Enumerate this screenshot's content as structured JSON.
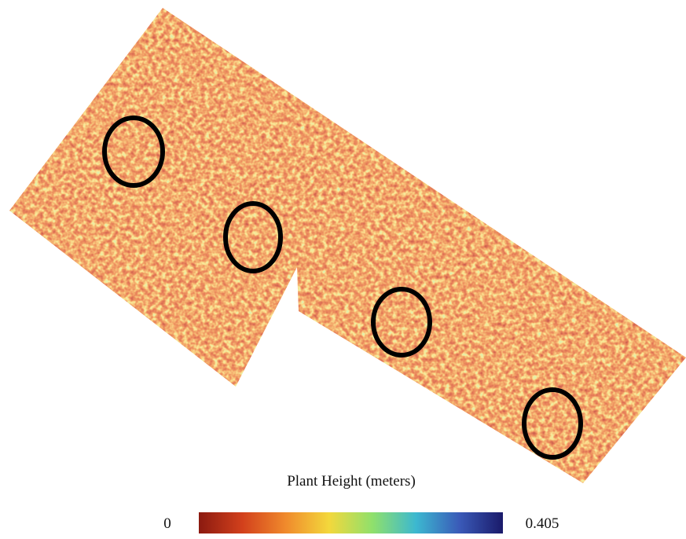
{
  "colorbar": {
    "title": "Plant Height (meters)",
    "min": 0,
    "max": 0.405,
    "colors": [
      "#8b1a10",
      "#d2401c",
      "#f08a2c",
      "#f3d83c",
      "#8fe06c",
      "#3cb8d0",
      "#3a5ab8",
      "#1a1a6a"
    ]
  }
}
